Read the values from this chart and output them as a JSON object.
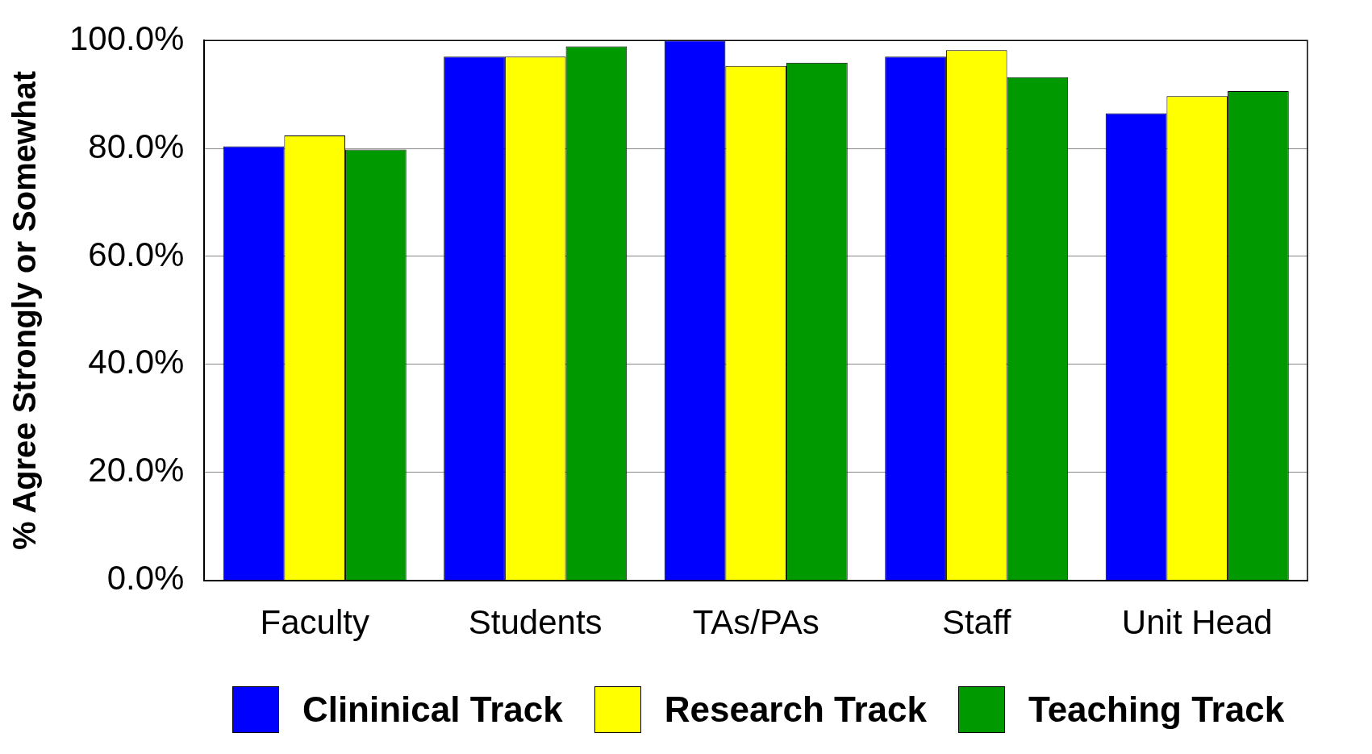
{
  "chart_data": {
    "type": "bar",
    "ylabel": "% Agree Strongly or Somewhat",
    "categories": [
      "Faculty",
      "Students",
      "TAs/PAs",
      "Staff",
      "Unit Head"
    ],
    "series": [
      {
        "name": "Clininical Track",
        "color": "#0000ff",
        "values": [
          80.4,
          97.0,
          100.0,
          97.0,
          86.5
        ]
      },
      {
        "name": "Research Track",
        "color": "#ffff00",
        "values": [
          82.4,
          97.0,
          95.3,
          98.2,
          89.7
        ]
      },
      {
        "name": "Teaching Track",
        "color": "#009900",
        "values": [
          79.8,
          98.9,
          95.9,
          93.2,
          90.6
        ]
      }
    ],
    "ylim": [
      0,
      100
    ],
    "yticks": [
      {
        "value": 0,
        "label": "0.0%"
      },
      {
        "value": 20,
        "label": "20.0%"
      },
      {
        "value": 40,
        "label": "40.0%"
      },
      {
        "value": 60,
        "label": "60.0%"
      },
      {
        "value": 80,
        "label": "80.0%"
      },
      {
        "value": 100,
        "label": "100.0%"
      }
    ],
    "grid": "y",
    "legend": "bottom"
  }
}
